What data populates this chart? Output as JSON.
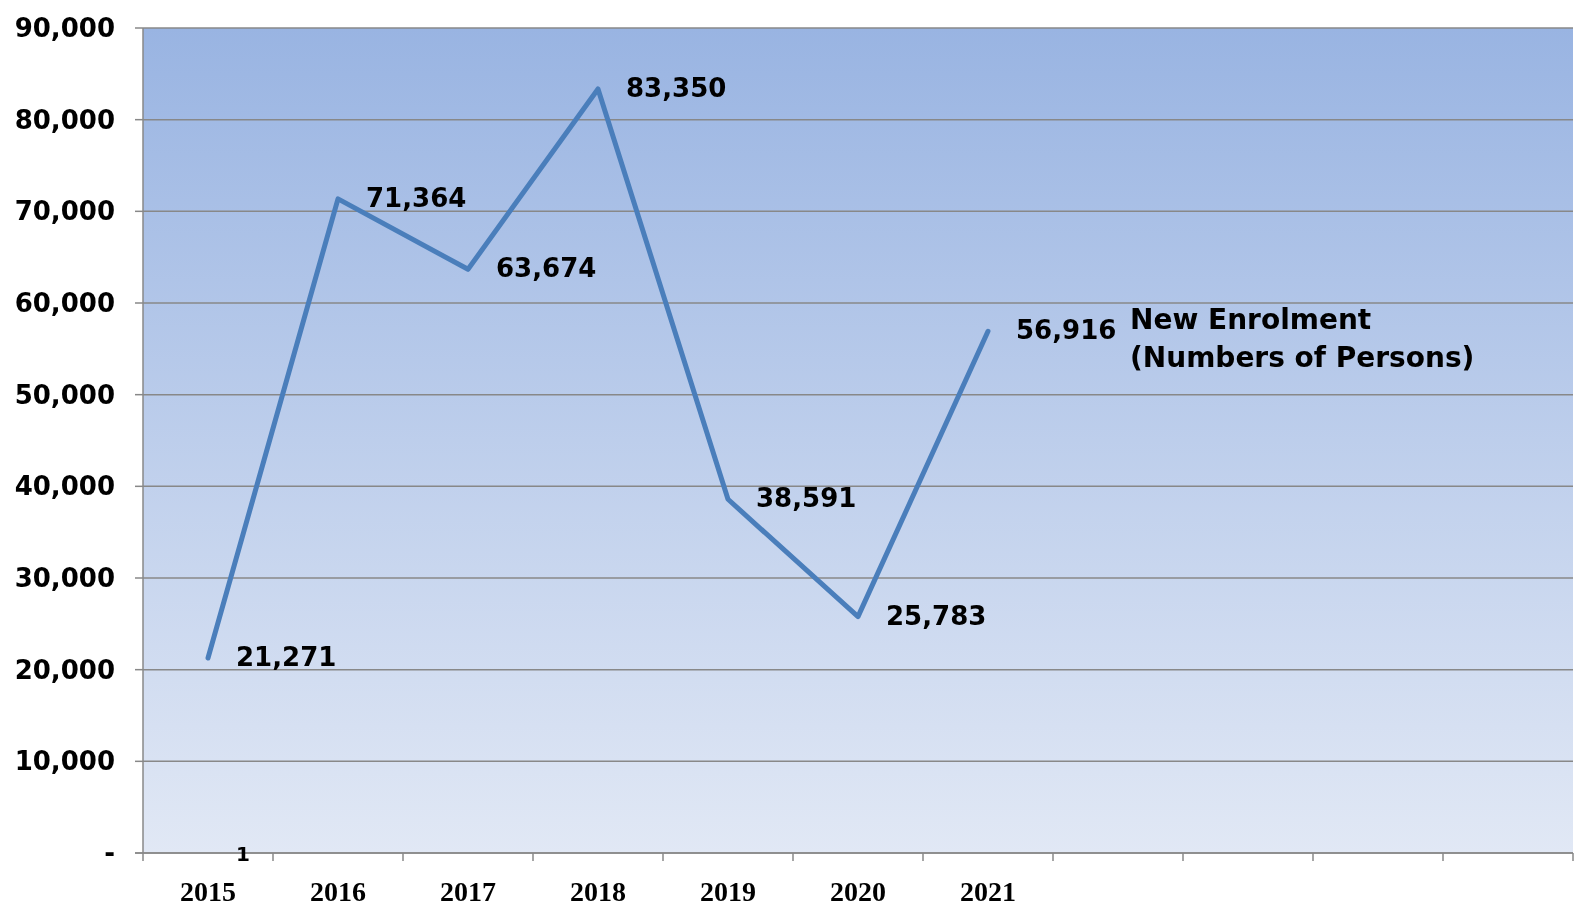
{
  "chart_data": {
    "type": "line",
    "categories": [
      "2015",
      "2016",
      "2017",
      "2018",
      "2019",
      "2020",
      "2021",
      null,
      null,
      null,
      null
    ],
    "series": [
      {
        "name": "New Enrolment\n(Numbers of Persons)",
        "color": "#4a7ebb",
        "values": [
          21271,
          71364,
          63674,
          83350,
          38591,
          25783,
          56916,
          null,
          null,
          null,
          null
        ],
        "value_labels": [
          "21,271",
          "71,364",
          "63,674",
          "83,350",
          "38,591",
          "25,783",
          "56,916",
          null,
          null,
          null,
          null
        ]
      }
    ],
    "ylim": [
      0,
      90000
    ],
    "yticks": [
      {
        "value": 0,
        "label": "-"
      },
      {
        "value": 10000,
        "label": "10,000"
      },
      {
        "value": 20000,
        "label": "20,000"
      },
      {
        "value": 30000,
        "label": "30,000"
      },
      {
        "value": 40000,
        "label": "40,000"
      },
      {
        "value": 50000,
        "label": "50,000"
      },
      {
        "value": 60000,
        "label": "60,000"
      },
      {
        "value": 70000,
        "label": "70,000"
      },
      {
        "value": 80000,
        "label": "80,000"
      },
      {
        "value": 90000,
        "label": "90,000"
      }
    ],
    "grid": "y",
    "marker": "none",
    "line_style": "solid",
    "annotations": [
      "1"
    ]
  }
}
